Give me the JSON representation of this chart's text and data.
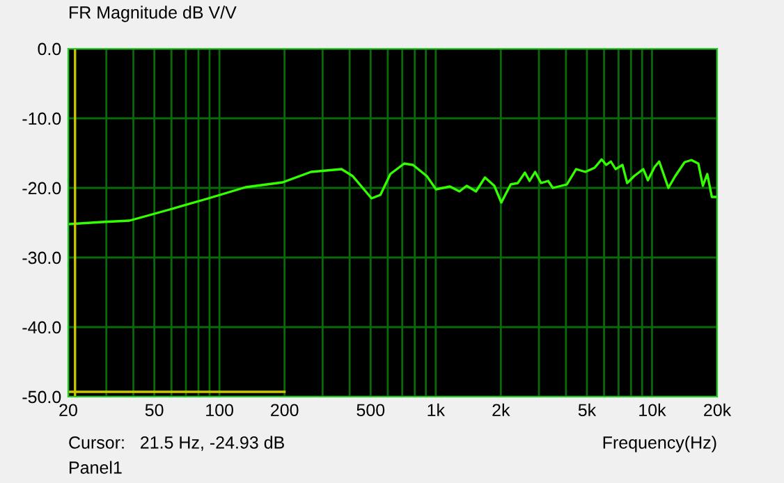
{
  "chart_data": {
    "type": "line",
    "title": "FR Magnitude dB V/V",
    "xlabel": "Frequency(Hz)",
    "log": "x",
    "annotations": [
      "Cursor:   21.5 Hz, -24.93 dB",
      "Panel1"
    ],
    "series": [
      {
        "color": "#33ff00",
        "x": [
          20.3,
          28.7,
          38.4,
          57.4,
          89,
          132,
          196,
          265,
          367,
          413,
          505,
          555,
          617,
          715,
          785,
          909,
          1003,
          1164,
          1287,
          1390,
          1535,
          1689,
          1866,
          2010,
          2221,
          2396,
          2584,
          2715,
          2880,
          3071,
          3309,
          3478,
          4039,
          4457,
          4917,
          5427,
          5846,
          6142,
          6451,
          6782,
          7300,
          7673,
          8263,
          9111,
          9568,
          10274,
          10790,
          11900,
          12800,
          14150,
          15200,
          16370,
          17180,
          18000,
          18900,
          20000
        ],
        "values": [
          -25.2,
          -24.9,
          -24.7,
          -23.2,
          -21.5,
          -19.9,
          -19.2,
          -17.7,
          -17.3,
          -18.3,
          -21.5,
          -21.0,
          -18.0,
          -16.5,
          -16.7,
          -18.3,
          -20.2,
          -19.8,
          -20.5,
          -19.7,
          -20.5,
          -18.5,
          -19.7,
          -22.1,
          -19.5,
          -19.3,
          -17.8,
          -19.0,
          -17.7,
          -19.3,
          -19.0,
          -20.0,
          -19.5,
          -17.3,
          -17.7,
          -17.1,
          -15.9,
          -16.7,
          -16.2,
          -17.3,
          -16.7,
          -19.3,
          -18.3,
          -17.3,
          -18.9,
          -17.0,
          -16.2,
          -20.0,
          -18.3,
          -16.3,
          -16.0,
          -16.5,
          -19.7,
          -18.0,
          -21.3,
          -21.3
        ]
      },
      {
        "color": "#c8c800",
        "x": [
          20,
          200
        ],
        "values": [
          -49.3,
          -49.3
        ]
      }
    ],
    "ref_lines": [
      {
        "axis": "x",
        "value": 21.5,
        "color": "#c8c800"
      }
    ],
    "xlim": [
      20,
      20000
    ],
    "ylim": [
      -50,
      0
    ],
    "xticks": [
      {
        "value": 20,
        "label": "20"
      },
      {
        "value": 30,
        "label": null
      },
      {
        "value": 40,
        "label": null
      },
      {
        "value": 50,
        "label": "50"
      },
      {
        "value": 60,
        "label": null
      },
      {
        "value": 70,
        "label": null
      },
      {
        "value": 80,
        "label": null
      },
      {
        "value": 90,
        "label": null
      },
      {
        "value": 100,
        "label": "100"
      },
      {
        "value": 200,
        "label": "200"
      },
      {
        "value": 300,
        "label": null
      },
      {
        "value": 400,
        "label": null
      },
      {
        "value": 500,
        "label": "500"
      },
      {
        "value": 600,
        "label": null
      },
      {
        "value": 700,
        "label": null
      },
      {
        "value": 800,
        "label": null
      },
      {
        "value": 900,
        "label": null
      },
      {
        "value": 1000,
        "label": "1k"
      },
      {
        "value": 2000,
        "label": "2k"
      },
      {
        "value": 3000,
        "label": null
      },
      {
        "value": 4000,
        "label": null
      },
      {
        "value": 5000,
        "label": "5k"
      },
      {
        "value": 6000,
        "label": null
      },
      {
        "value": 7000,
        "label": null
      },
      {
        "value": 8000,
        "label": null
      },
      {
        "value": 9000,
        "label": null
      },
      {
        "value": 10000,
        "label": "10k"
      },
      {
        "value": 20000,
        "label": "20k"
      }
    ],
    "yticks": [
      {
        "value": 0,
        "label": "0.0"
      },
      {
        "value": -10,
        "label": "-10.0"
      },
      {
        "value": -20,
        "label": "-20.0"
      },
      {
        "value": -30,
        "label": "-30.0"
      },
      {
        "value": -40,
        "label": "-40.0"
      },
      {
        "value": -50,
        "label": "-50.0"
      }
    ],
    "grid": true,
    "legend": false
  }
}
